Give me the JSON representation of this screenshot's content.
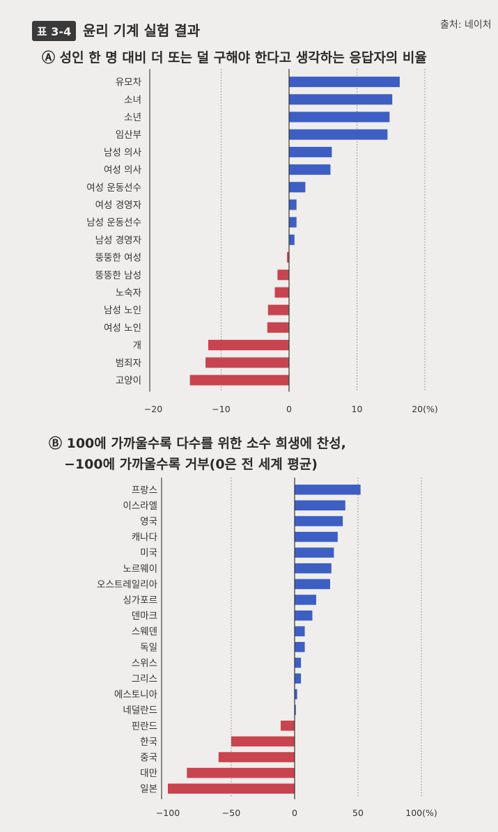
{
  "figure": {
    "badge": "표 3-4",
    "title": "윤리 기계 실험 결과",
    "source": "출처: 네이처"
  },
  "chart_data": [
    {
      "type": "bar",
      "orientation": "horizontal",
      "title": "Ⓐ 성인 한 명 대비 더 또는 덜 구해야 한다고 생각하는 응답자의 비율",
      "xlim": [
        -20,
        20
      ],
      "ticks": [
        "−20",
        "−10",
        "0",
        "10",
        "20(%)"
      ],
      "tick_values": [
        -20,
        -10,
        0,
        10,
        20
      ],
      "grid": "vertical dotted lines at ±10, 20",
      "positive_color": "#3d5fc4",
      "negative_color": "#c8454f",
      "categories": [
        "유모차",
        "소녀",
        "소년",
        "임산부",
        "남성 의사",
        "여성 의사",
        "여성 운동선수",
        "여성 경영자",
        "남성 운동선수",
        "남성 경영자",
        "뚱뚱한 여성",
        "뚱뚱한 남성",
        "노숙자",
        "남성 노인",
        "여성 노인",
        "개",
        "범죄자",
        "고양이"
      ],
      "values": [
        16.3,
        15.2,
        14.8,
        14.5,
        6.3,
        6.1,
        2.4,
        1.1,
        1.1,
        0.8,
        -0.3,
        -1.7,
        -2.1,
        -3.1,
        -3.2,
        -11.9,
        -12.3,
        -14.6
      ]
    },
    {
      "type": "bar",
      "orientation": "horizontal",
      "title_line1": "Ⓑ 100에 가까울수록 다수를 위한 소수 희생에 찬성,",
      "title_line2": "−100에 가까울수록 거부(0은 전 세계 평균)",
      "xlim": [
        -100,
        100
      ],
      "ticks": [
        "−100",
        "−50",
        "0",
        "50",
        "100(%)"
      ],
      "tick_values": [
        -100,
        -50,
        0,
        50,
        100
      ],
      "grid": "vertical dotted lines at ±50, 100",
      "positive_color": "#3d5fc4",
      "negative_color": "#c8454f",
      "categories": [
        "프랑스",
        "이스라엘",
        "영국",
        "캐나다",
        "미국",
        "노르웨이",
        "오스트레일리아",
        "싱가포르",
        "덴마크",
        "스웨덴",
        "독일",
        "스위스",
        "그리스",
        "에스토니아",
        "네덜란드",
        "핀란드",
        "한국",
        "중국",
        "대만",
        "일본"
      ],
      "values": [
        52,
        40,
        38,
        34,
        31,
        29,
        28,
        17,
        14,
        8,
        8,
        5,
        5,
        2,
        1,
        -11,
        -50,
        -60,
        -85,
        -100
      ]
    }
  ]
}
